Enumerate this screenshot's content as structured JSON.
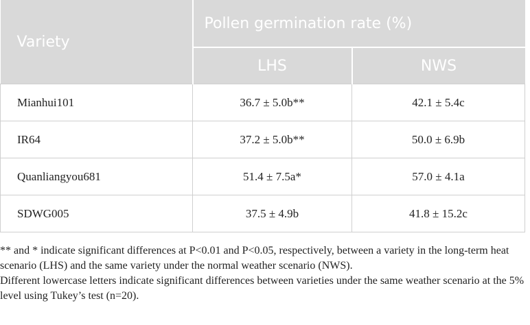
{
  "table": {
    "header": {
      "variety": "Variety",
      "group": "Pollen germination rate (%)",
      "columns": [
        "LHS",
        "NWS"
      ]
    },
    "rows": [
      [
        "Mianhui101",
        "36.7 ± 5.0b**",
        "42.1 ± 5.4c"
      ],
      [
        "IR64",
        "37.2 ± 5.0b**",
        "50.0 ± 6.9b"
      ],
      [
        "Quanliangyou681",
        "51.4 ± 7.5a*",
        "57.0 ± 4.1a"
      ],
      [
        "SDWG005",
        "37.5 ± 4.9b",
        "41.8 ± 15.2c"
      ]
    ]
  },
  "notes": [
    "** and * indicate significant differences at P<0.01 and P<0.05, respectively, between a variety in the long-term heat scenario (LHS) and the same variety under the normal weather scenario (NWS).",
    "Different lowercase letters indicate significant differences between varieties under the same weather scenario at the 5% level using Tukey’s test (n=20)."
  ]
}
